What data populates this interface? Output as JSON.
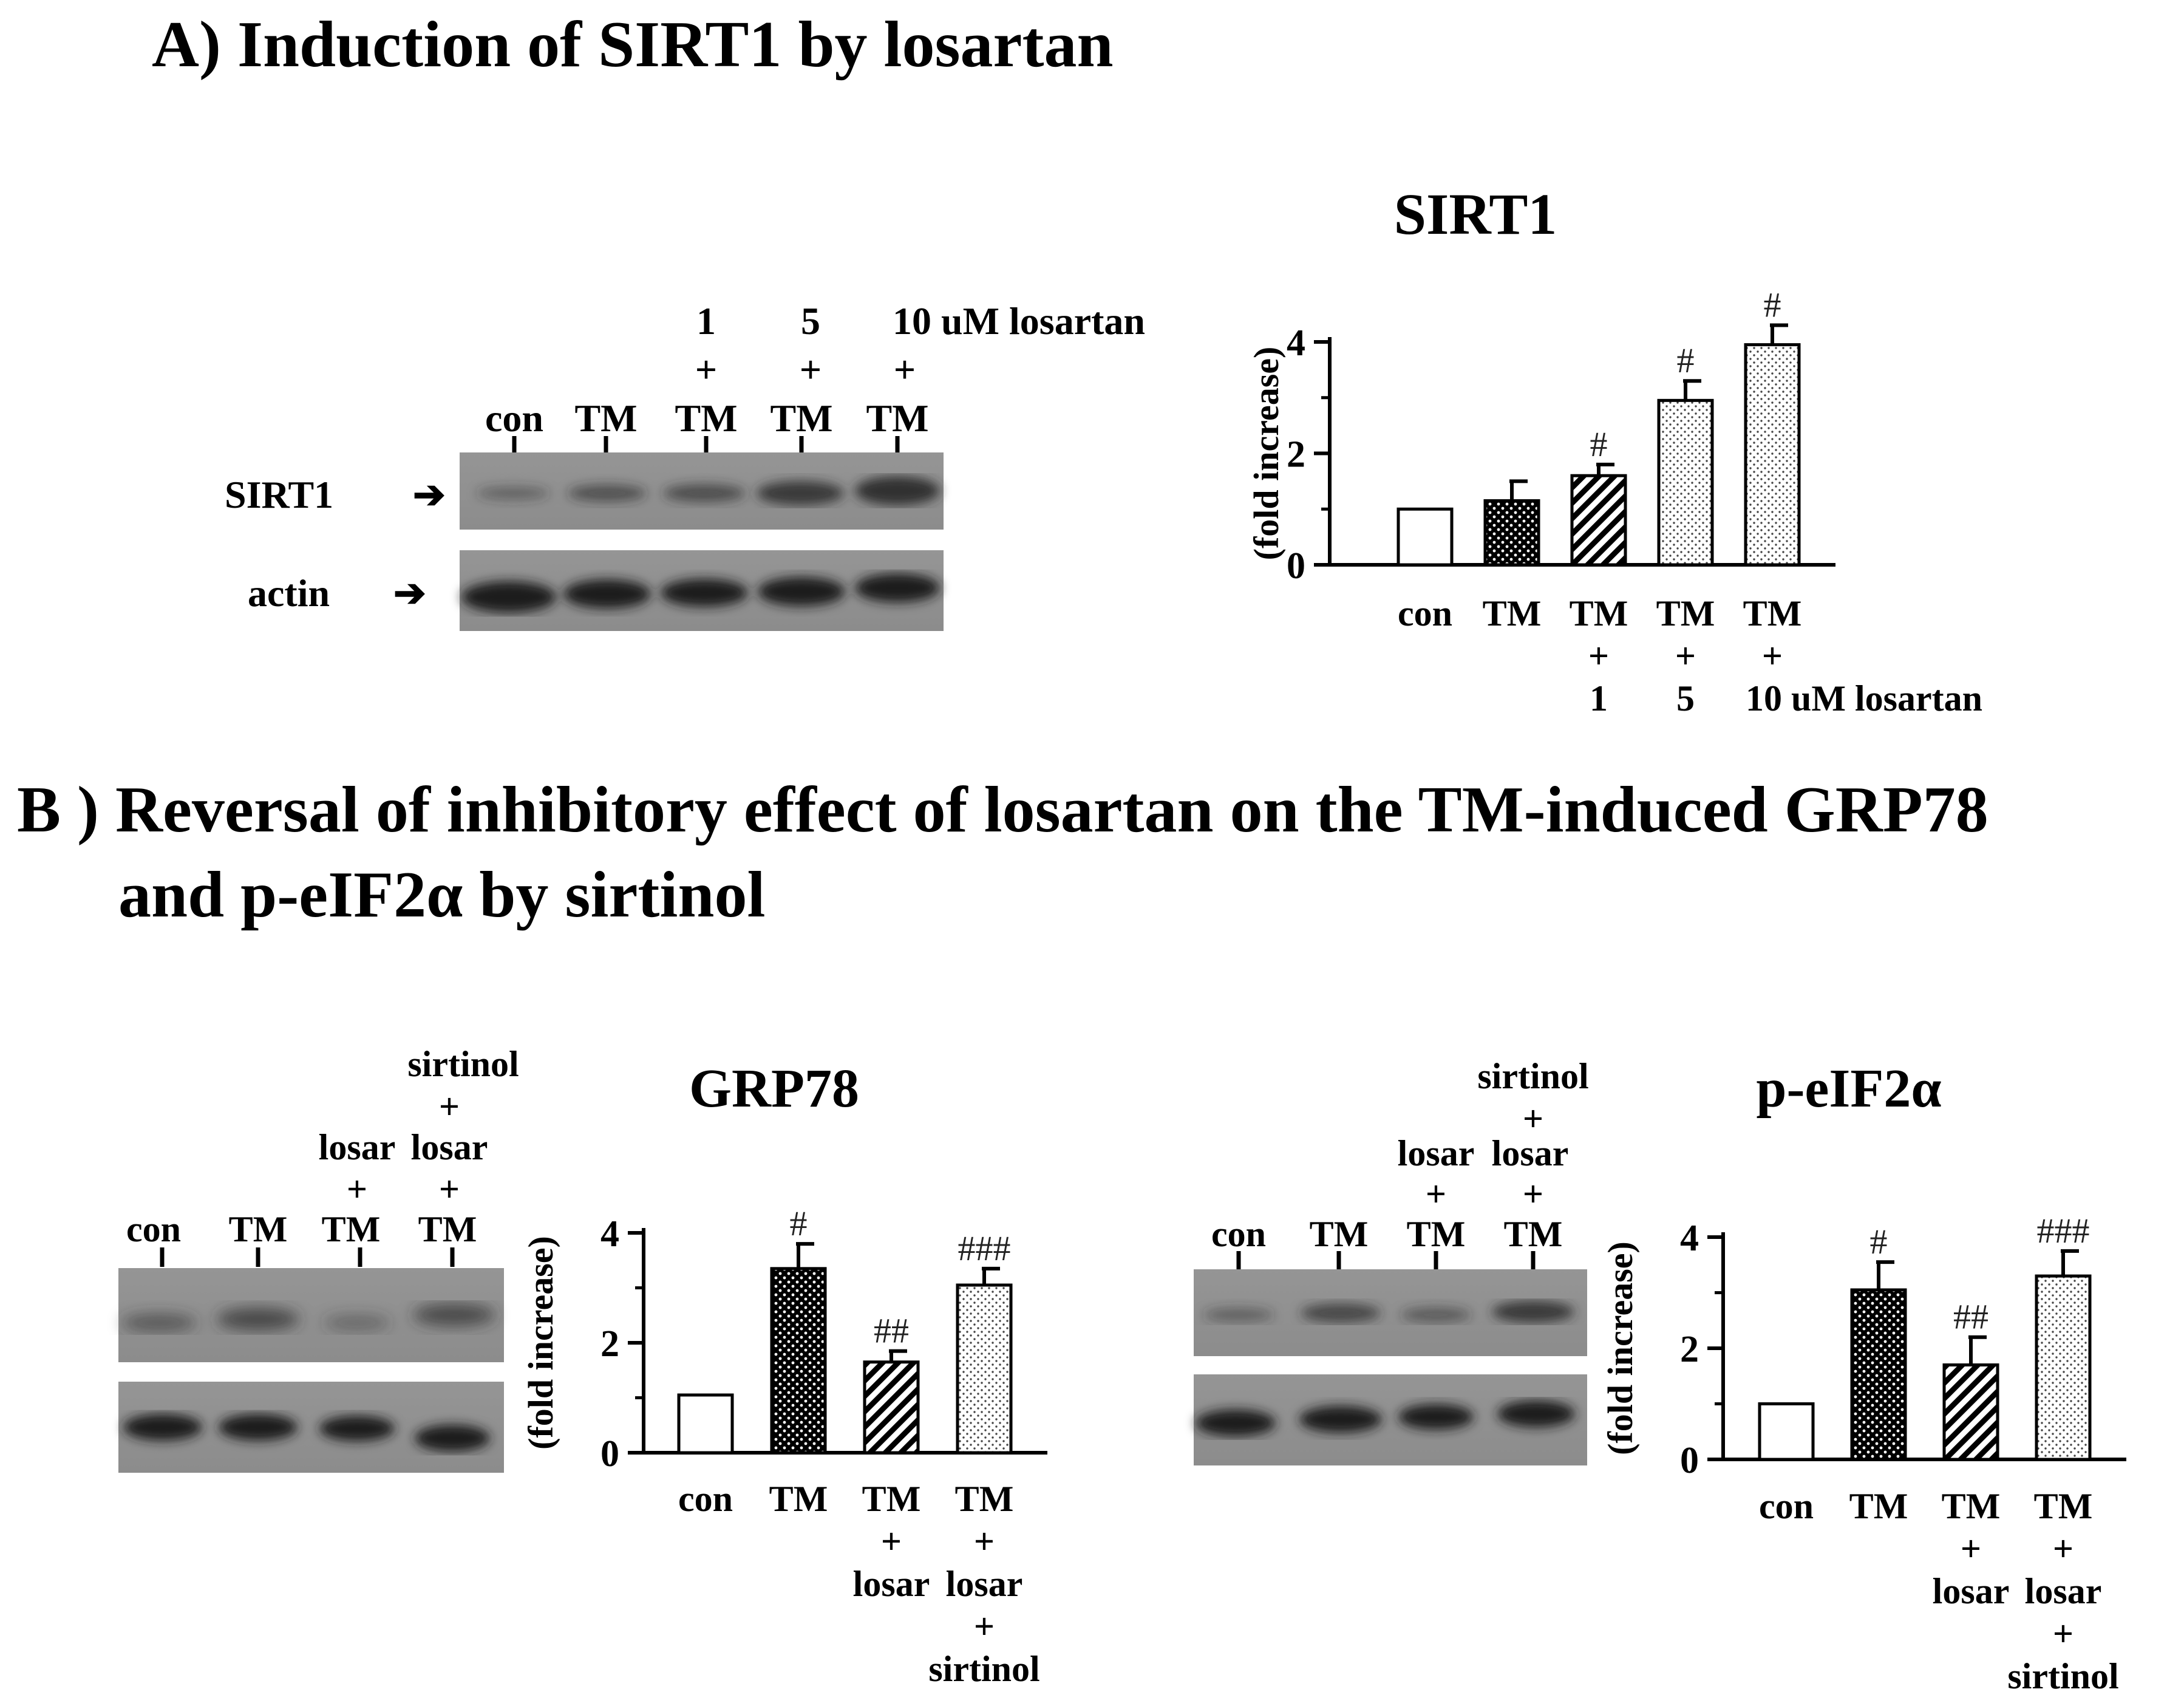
{
  "panel_a": {
    "title": "A) Induction of SIRT1 by losartan",
    "blot": {
      "dose_labels": [
        "1",
        "5",
        "10 uM losartan"
      ],
      "plus": "+",
      "lanes": [
        "con",
        "TM",
        "TM",
        "TM",
        "TM"
      ],
      "rows": [
        "SIRT1",
        "actin"
      ],
      "arrow": "➔"
    }
  },
  "panel_b": {
    "title_line1": "B ) Reversal of  inhibitory effect of losartan on the TM-induced GRP78",
    "title_line2": "and  p-eIF2α by sirtinol",
    "blot1": {
      "header_top": "sirtinol",
      "plus": "+",
      "losar": "losar",
      "lanes": [
        "con",
        "TM",
        "TM",
        "TM"
      ]
    },
    "blot2": {
      "header_top": "sirtinol",
      "plus": "+",
      "losar": "losar",
      "lanes": [
        "con",
        "TM",
        "TM",
        "TM"
      ]
    }
  },
  "chart_data": [
    {
      "type": "bar",
      "title": "SIRT1",
      "ylabel": "(fold increase)",
      "ylim": [
        0,
        4
      ],
      "yticks": [
        0,
        2,
        4
      ],
      "categories": [
        "con",
        "TM",
        "TM + 1",
        "TM + 5",
        "TM + 10 uM losartan"
      ],
      "category_lines": [
        [
          "con"
        ],
        [
          "TM"
        ],
        [
          "TM",
          "+",
          "1"
        ],
        [
          "TM",
          "+",
          "5"
        ],
        [
          "TM",
          "+",
          "10 uM losartan"
        ]
      ],
      "values": [
        1.0,
        1.15,
        1.6,
        2.95,
        3.95
      ],
      "errors": [
        0.0,
        0.35,
        0.2,
        0.35,
        0.35
      ],
      "fills": [
        "white",
        "dots",
        "hatch",
        "speckle",
        "speckle"
      ],
      "annotations": [
        "",
        "",
        "#",
        "#",
        "#"
      ]
    },
    {
      "type": "bar",
      "title": "GRP78",
      "ylabel": "(fold increase)",
      "ylim": [
        0,
        4
      ],
      "yticks": [
        0,
        2,
        4
      ],
      "categories": [
        "con",
        "TM",
        "TM + losar",
        "TM + losar + sirtinol"
      ],
      "category_lines": [
        [
          "con"
        ],
        [
          "TM"
        ],
        [
          "TM",
          "+",
          "losar"
        ],
        [
          "TM",
          "+",
          "losar",
          "+",
          "sirtinol"
        ]
      ],
      "values": [
        1.05,
        3.35,
        1.65,
        3.05
      ],
      "errors": [
        0.0,
        0.45,
        0.2,
        0.3
      ],
      "fills": [
        "white",
        "dots",
        "hatch",
        "speckle"
      ],
      "annotations": [
        "",
        "#",
        "##",
        "###"
      ]
    },
    {
      "type": "bar",
      "title": "p-eIF2α",
      "ylabel": "(fold increase)",
      "ylim": [
        0,
        4
      ],
      "yticks": [
        0,
        2,
        4
      ],
      "categories": [
        "con",
        "TM",
        "TM + losar",
        "TM + losar + sirtinol"
      ],
      "category_lines": [
        [
          "con"
        ],
        [
          "TM"
        ],
        [
          "TM",
          "+",
          "losar"
        ],
        [
          "TM",
          "+",
          "losar",
          "+",
          "sirtinol"
        ]
      ],
      "values": [
        1.0,
        3.05,
        1.7,
        3.3
      ],
      "errors": [
        0.0,
        0.5,
        0.5,
        0.45
      ],
      "fills": [
        "white",
        "dots",
        "hatch",
        "speckle"
      ],
      "annotations": [
        "",
        "#",
        "##",
        "###"
      ]
    }
  ]
}
